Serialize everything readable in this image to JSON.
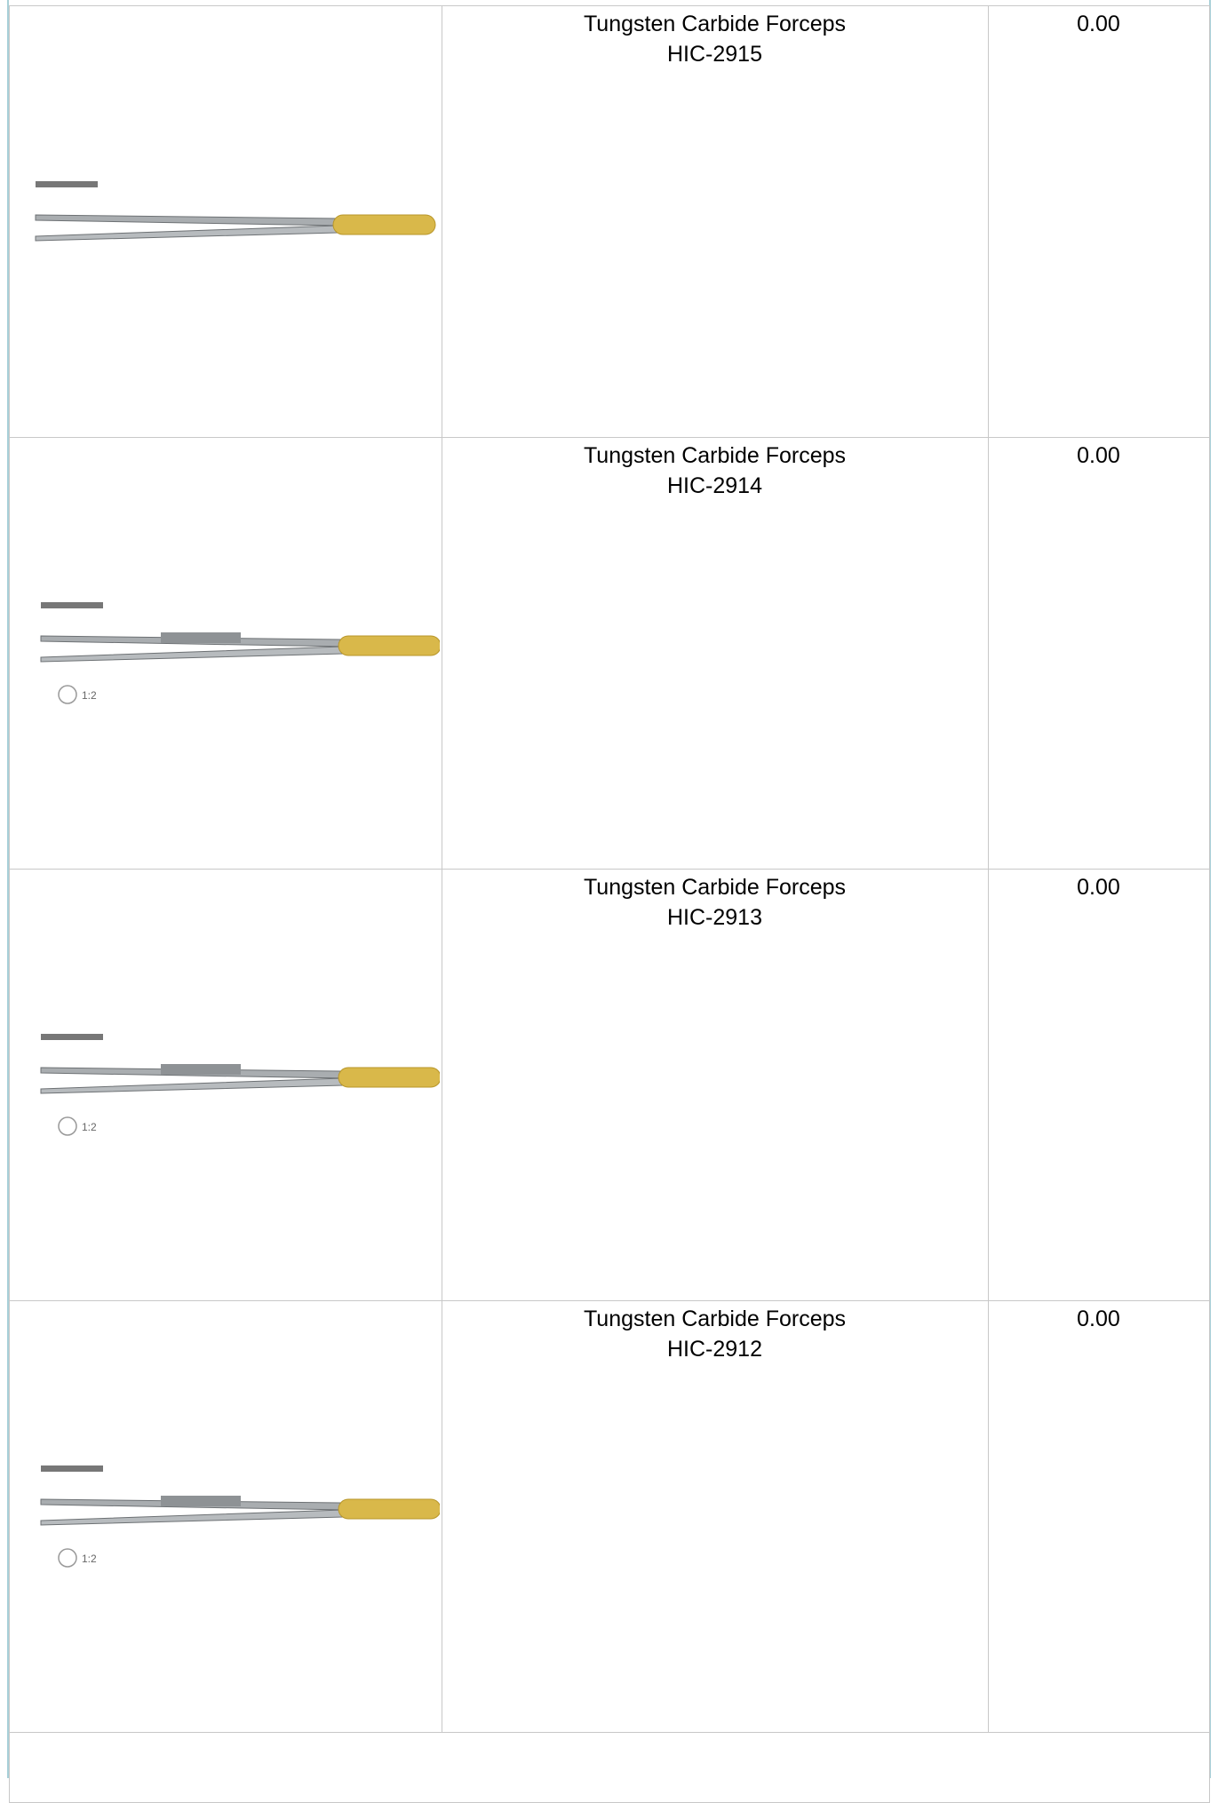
{
  "table": {
    "rows": [
      {
        "name": "Tungsten Carbide Forceps",
        "code": "HIC-2915",
        "price": "0.00"
      },
      {
        "name": "Tungsten Carbide Forceps",
        "code": "HIC-2914",
        "price": "0.00",
        "image_label": "1:2"
      },
      {
        "name": "Tungsten Carbide Forceps",
        "code": "HIC-2913",
        "price": "0.00",
        "image_label": "1:2"
      },
      {
        "name": "Tungsten Carbide Forceps",
        "code": "HIC-2912",
        "price": "0.00",
        "image_label": "1:2"
      }
    ]
  }
}
